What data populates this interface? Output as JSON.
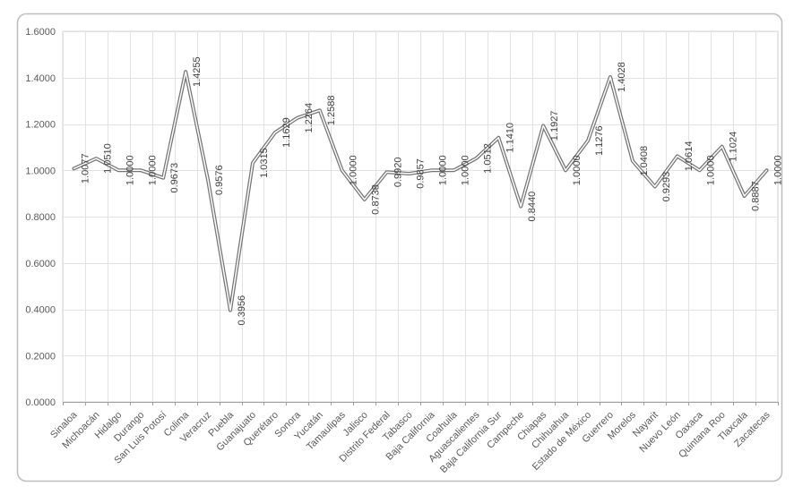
{
  "chart_data": {
    "type": "line",
    "title": "",
    "categories": [
      "Sinaloa",
      "Michoacán",
      "Hidalgo",
      "Durango",
      "San Luis Potosí",
      "Colima",
      "Veracruz",
      "Puebla",
      "Guanajuato",
      "Querétaro",
      "Sonora",
      "Yucatán",
      "Tamaulipas",
      "Jalisco",
      "Distrito Federal",
      "Tabasco",
      "Baja California",
      "Coahuila",
      "Aguascalientes",
      "Baja California Sur",
      "Campeche",
      "Chiapas",
      "Chihuahua",
      "Estado de México",
      "Guerrero",
      "Morelos",
      "Nayarit",
      "Nuevo León",
      "Oaxaca",
      "Quintana Roo",
      "Tlaxcala",
      "Zacatecas"
    ],
    "values": [
      1.0077,
      1.051,
      1.0,
      1.0,
      0.9673,
      1.4255,
      0.9576,
      0.3956,
      1.0315,
      1.1629,
      1.2264,
      1.2588,
      1.0,
      0.8738,
      0.992,
      0.9857,
      1.0,
      1.0,
      1.0512,
      1.141,
      0.844,
      1.1927,
      1.0,
      1.1276,
      1.4028,
      1.0408,
      0.9293,
      1.0614,
      1.0,
      1.1024,
      0.8887,
      1.0
    ],
    "data_labels": [
      "1.0077",
      "1.0510",
      "1.0000",
      "1.0000",
      "0.9673",
      "1.4255",
      "0.9576",
      "0.3956",
      "1.0315",
      "1.1629",
      "1.2264",
      "1.2588",
      "1.0000",
      "0.8738",
      "0.9920",
      "0.9857",
      "1.0000",
      "1.0000",
      "1.0512",
      "1.1410",
      "0.8440",
      "1.1927",
      "1.0000",
      "1.1276",
      "1.4028",
      "1.0408",
      "0.9293",
      "1.0614",
      "1.0000",
      "1.1024",
      "0.8887",
      "1.0000"
    ],
    "xlabel": "",
    "ylabel": "",
    "ylim": [
      0.0,
      1.6
    ],
    "y_tick_step": 0.2,
    "y_tick_labels": [
      "0.0000",
      "0.2000",
      "0.4000",
      "0.6000",
      "0.8000",
      "1.0000",
      "1.2000",
      "1.4000",
      "1.6000"
    ],
    "grid": {
      "horizontal": true,
      "vertical": true
    },
    "legend": "none",
    "data_label_rotation": -90,
    "category_label_rotation": -45
  },
  "colors": {
    "background": "#ffffff",
    "line": "#757575",
    "line_core": "#ffffff",
    "gridline": "#e2e2e2",
    "plot_border": "#d6d6d6",
    "axis_line": "#9e9e9e",
    "outer_border": "#bdbdbd",
    "data_label_text": "#3f3f3f",
    "axis_text": "#595959"
  }
}
